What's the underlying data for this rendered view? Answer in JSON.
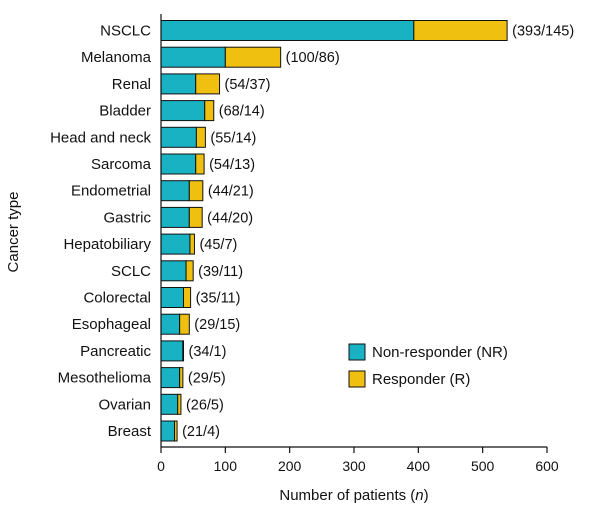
{
  "chart_data": {
    "type": "bar",
    "orientation": "horizontal",
    "stacked": true,
    "categories": [
      "NSCLC",
      "Melanoma",
      "Renal",
      "Bladder",
      "Head and neck",
      "Sarcoma",
      "Endometrial",
      "Gastric",
      "Hepatobiliary",
      "SCLC",
      "Colorectal",
      "Esophageal",
      "Pancreatic",
      "Mesothelioma",
      "Ovarian",
      "Breast"
    ],
    "series": [
      {
        "name": "Non-responder (NR)",
        "color": "#18b2c2",
        "values": [
          393,
          100,
          54,
          68,
          55,
          54,
          44,
          44,
          45,
          39,
          35,
          29,
          34,
          29,
          26,
          21
        ]
      },
      {
        "name": "Responder (R)",
        "color": "#f0c010",
        "values": [
          145,
          86,
          37,
          14,
          14,
          13,
          21,
          20,
          7,
          11,
          11,
          15,
          1,
          5,
          5,
          4
        ]
      }
    ],
    "bar_labels": [
      "(393/145)",
      "(100/86)",
      "(54/37)",
      "(68/14)",
      "(55/14)",
      "(54/13)",
      "(44/21)",
      "(44/20)",
      "(45/7)",
      "(39/11)",
      "(35/11)",
      "(29/15)",
      "(34/1)",
      "(29/5)",
      "(26/5)",
      "(21/4)"
    ],
    "xlabel": "Number of patients (",
    "xlabel_italic": "n",
    "xlabel_suffix": ")",
    "ylabel": "Cancer type",
    "xlim": [
      0,
      600
    ],
    "xticks": [
      0,
      100,
      200,
      300,
      400,
      500,
      600
    ],
    "grid": false,
    "legend_position": "right"
  }
}
